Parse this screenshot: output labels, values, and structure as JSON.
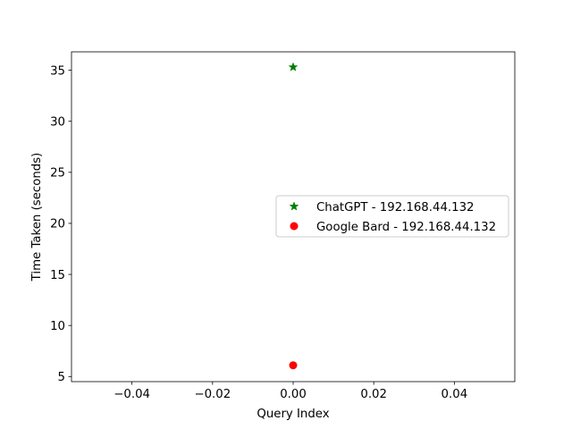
{
  "chart_data": {
    "type": "scatter",
    "title": "",
    "xlabel": "Query Index",
    "ylabel": "Time Taken (seconds)",
    "xlim": [
      -0.055,
      0.055
    ],
    "ylim": [
      4.5,
      36.8
    ],
    "xticks": [
      -0.04,
      -0.02,
      0.0,
      0.02,
      0.04
    ],
    "xtick_labels": [
      "−0.04",
      "−0.02",
      "0.00",
      "0.02",
      "0.04"
    ],
    "yticks": [
      5,
      10,
      15,
      20,
      25,
      30,
      35
    ],
    "ytick_labels": [
      "5",
      "10",
      "15",
      "20",
      "25",
      "30",
      "35"
    ],
    "grid": false,
    "legend_position": "center-right",
    "series": [
      {
        "name": "ChatGPT - 192.168.44.132",
        "marker": "star",
        "color": "#008000",
        "x": [
          0
        ],
        "y": [
          35.3
        ]
      },
      {
        "name": "Google Bard - 192.168.44.132",
        "marker": "circle",
        "color": "#ff0000",
        "x": [
          0
        ],
        "y": [
          6.1
        ]
      }
    ]
  }
}
